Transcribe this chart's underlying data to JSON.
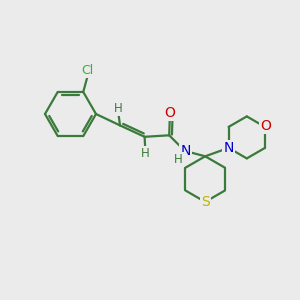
{
  "bg_color": "#ebebeb",
  "bond_color": "#3a7a3a",
  "bond_width": 1.6,
  "atom_colors": {
    "Cl": "#2db52d",
    "O": "#cc0000",
    "N": "#0000cc",
    "S": "#b8b800",
    "H": "#3a7a3a",
    "C": "#3a7a3a"
  },
  "font_size_atom": 10,
  "font_size_H": 8.5
}
